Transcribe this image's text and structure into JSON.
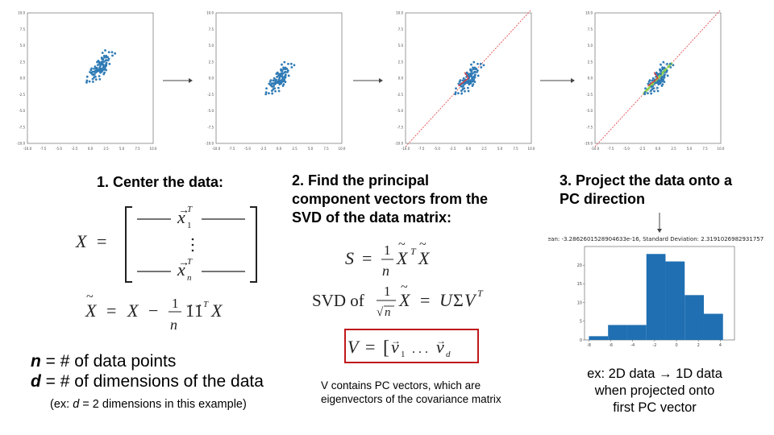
{
  "scatter_ticks": [
    "-10.0",
    "-7.5",
    "-5.0",
    "-2.5",
    "0.0",
    "2.5",
    "5.0",
    "7.5",
    "10.0"
  ],
  "steps": {
    "one": {
      "title": "1. Center the data:"
    },
    "two": {
      "title_lines": [
        "2. Find the principal",
        "component vectors from the",
        "SVD of the data matrix:"
      ]
    },
    "three": {
      "title_lines": [
        "3. Project the data onto a",
        "PC direction"
      ]
    }
  },
  "notes": {
    "n_def": {
      "var": "n",
      "text": " = # of data points"
    },
    "d_def": {
      "var": "d",
      "text": " = # of dimensions of the data"
    },
    "example": {
      "pre": "(ex: ",
      "var": "d",
      "post": " = 2 dimensions in this example)"
    },
    "v_note_lines": [
      "V contains PC vectors, which are",
      "eigenvectors of the covariance matrix"
    ],
    "result_lines": [
      "ex: 2D data → 1D data",
      "when projected onto",
      "first PC vector"
    ]
  },
  "colors": {
    "points": "#2f7bb5",
    "pc_line": "#e03a3a",
    "highlight_box": "#c0181c",
    "projected": "#8fd14f"
  },
  "chart_data": [
    {
      "type": "scatter",
      "title": "",
      "xlim": [
        -10,
        10
      ],
      "ylim": [
        -10,
        10
      ],
      "stage": "raw",
      "grid": false
    },
    {
      "type": "scatter",
      "title": "",
      "xlim": [
        -10,
        10
      ],
      "ylim": [
        -10,
        10
      ],
      "stage": "centered",
      "grid": false
    },
    {
      "type": "scatter",
      "title": "",
      "xlim": [
        -10,
        10
      ],
      "ylim": [
        -10,
        10
      ],
      "stage": "pc_direction",
      "grid": false
    },
    {
      "type": "scatter",
      "title": "",
      "xlim": [
        -10,
        10
      ],
      "ylim": [
        -10,
        10
      ],
      "stage": "projection",
      "grid": false
    },
    {
      "type": "bar",
      "title": "Mean: -3.2862601528904633e-16, Standard Deviation: 2.3191026982931757",
      "bin_edges": [
        -8,
        -6.25,
        -4.5,
        -2.75,
        -1.0,
        0.75,
        2.5,
        4.25
      ],
      "counts": [
        1,
        4,
        4,
        23,
        21,
        12,
        7
      ],
      "xticks": [
        "-8",
        "-6",
        "-4",
        "-2",
        "0",
        "2",
        "4"
      ],
      "yticks": [
        "0",
        "5",
        "10",
        "15",
        "20"
      ],
      "xlim": [
        -8.4,
        5.3
      ],
      "ylim": [
        0,
        25
      ]
    }
  ]
}
